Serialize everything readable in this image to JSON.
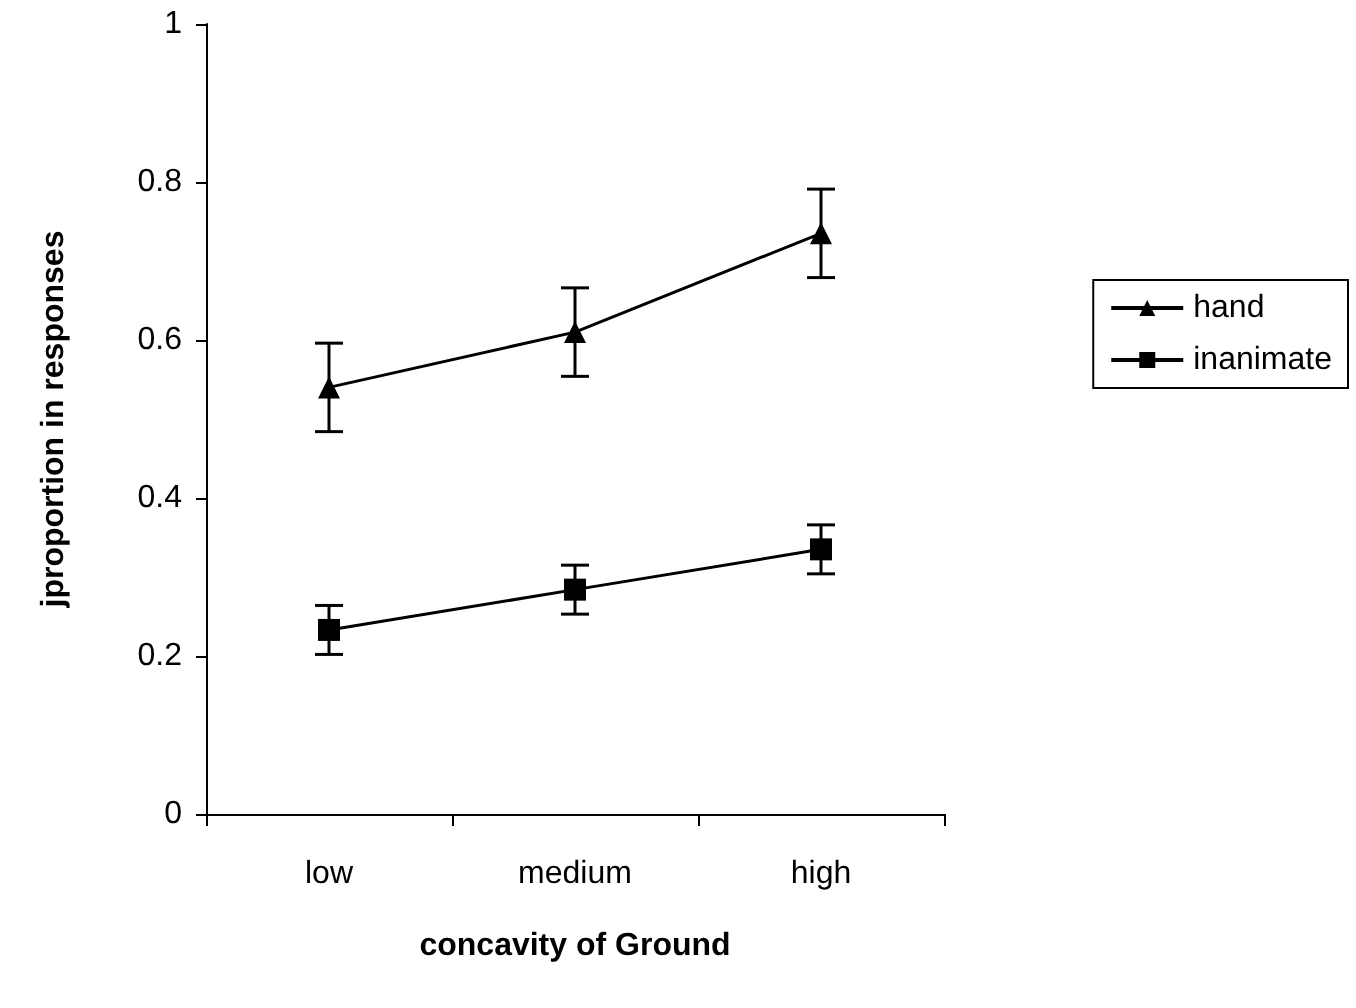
{
  "chart_data": {
    "type": "line",
    "xlabel": "concavity of Ground",
    "ylabel": "jproportion in responses",
    "categories": [
      "low",
      "medium",
      "high"
    ],
    "series": [
      {
        "name": "hand",
        "color": "#000000",
        "marker": "triangle",
        "values": [
          0.54,
          0.61,
          0.735
        ],
        "errors": [
          0.056,
          0.056,
          0.056
        ]
      },
      {
        "name": "inanimate",
        "color": "#000000",
        "marker": "square",
        "values": [
          0.233,
          0.284,
          0.335
        ],
        "errors": [
          0.031,
          0.031,
          0.031
        ]
      }
    ],
    "ylim": [
      0,
      1
    ],
    "yticks": [
      0,
      0.2,
      0.4,
      0.6,
      0.8,
      1
    ],
    "grid": false,
    "legend": "right",
    "line_style": "solid"
  }
}
